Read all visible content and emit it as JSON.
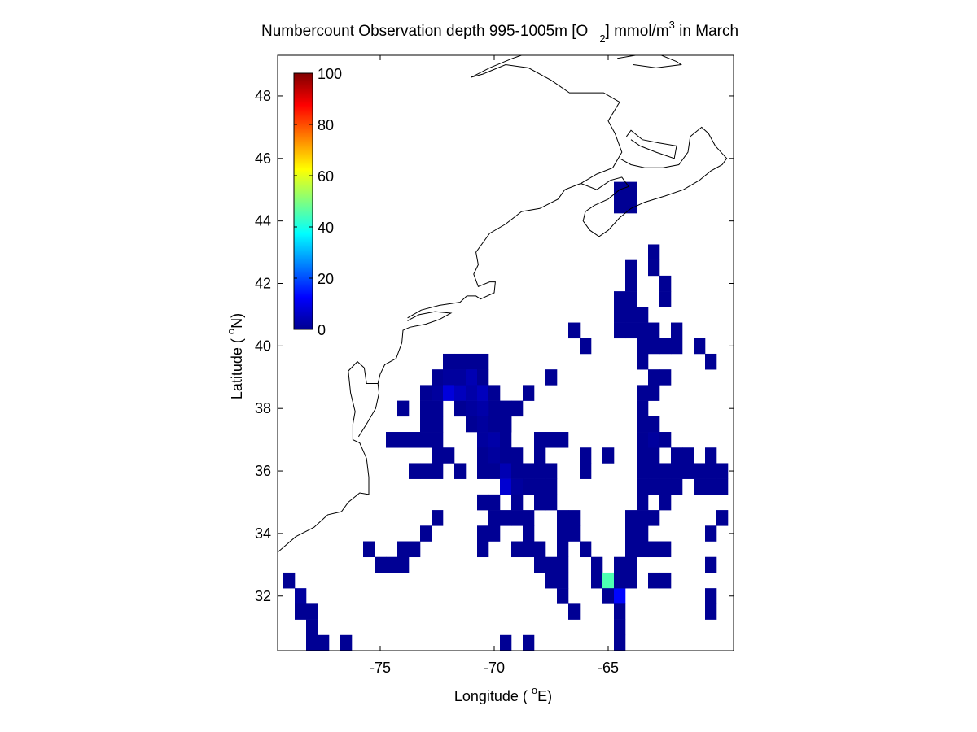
{
  "chart_data": {
    "type": "heatmap",
    "title": {
      "pre": "Numbercount Observation depth 995-1005m [O",
      "sub": "2",
      "mid": "] mmol/m",
      "sup": "3",
      "post": " in March"
    },
    "xlabel": {
      "pre": "Longitude ( ",
      "sup": "o",
      "post": "E)"
    },
    "ylabel": {
      "pre": "Latitude ( ",
      "sup": "o",
      "post": "N)"
    },
    "xlim": [
      -79.5,
      -59.5
    ],
    "ylim": [
      30.25,
      49.3
    ],
    "xticks": [
      -75,
      -70,
      -65
    ],
    "xtick_labels": [
      "-75",
      "-70",
      "-65"
    ],
    "yticks": [
      32,
      34,
      36,
      38,
      40,
      42,
      44,
      46,
      48
    ],
    "ytick_labels": [
      "32",
      "34",
      "36",
      "38",
      "40",
      "42",
      "44",
      "46",
      "48"
    ],
    "grid_resolution_deg": 0.5,
    "colorbar": {
      "min": 0,
      "max": 100,
      "colormap": "jet",
      "ticks": [
        0,
        20,
        40,
        60,
        80,
        100
      ],
      "tick_labels": [
        "0",
        "20",
        "40",
        "60",
        "80",
        "100"
      ]
    },
    "cells": [
      [
        -79,
        32.5,
        2
      ],
      [
        -78.5,
        32,
        3
      ],
      [
        -78.5,
        31.5,
        2
      ],
      [
        -78,
        31.5,
        2
      ],
      [
        -78,
        31,
        2
      ],
      [
        -78,
        30.5,
        2
      ],
      [
        -77.5,
        30.5,
        2
      ],
      [
        -76.5,
        30.5,
        2
      ],
      [
        -75.5,
        33.5,
        2
      ],
      [
        -75,
        33,
        2
      ],
      [
        -74.5,
        33,
        2
      ],
      [
        -74,
        33,
        2
      ],
      [
        -74,
        33.5,
        2
      ],
      [
        -73.5,
        33.5,
        2
      ],
      [
        -73,
        34,
        2
      ],
      [
        -72.5,
        34.5,
        2
      ],
      [
        -73.5,
        36,
        2
      ],
      [
        -73,
        36,
        2
      ],
      [
        -72.5,
        36,
        2
      ],
      [
        -74.5,
        37,
        2
      ],
      [
        -74,
        37,
        2
      ],
      [
        -73.5,
        37,
        2
      ],
      [
        -74,
        38,
        2
      ],
      [
        -73,
        38.5,
        2
      ],
      [
        -72.5,
        38.5,
        3
      ],
      [
        -73,
        38,
        2
      ],
      [
        -72.5,
        38,
        2
      ],
      [
        -72.5,
        37.5,
        2
      ],
      [
        -73,
        37.5,
        2
      ],
      [
        -73,
        37,
        2
      ],
      [
        -72.5,
        37,
        2
      ],
      [
        -72.5,
        36.5,
        2
      ],
      [
        -72.5,
        39,
        2
      ],
      [
        -72,
        39,
        3
      ],
      [
        -72,
        38.5,
        9
      ],
      [
        -71.5,
        38.5,
        6
      ],
      [
        -72,
        39.5,
        2
      ],
      [
        -71.5,
        39.5,
        2
      ],
      [
        -71,
        39.5,
        2
      ],
      [
        -70.5,
        39.5,
        2
      ],
      [
        -71.5,
        39,
        3
      ],
      [
        -71,
        39,
        5
      ],
      [
        -70.5,
        39,
        2
      ],
      [
        -71,
        38.5,
        4
      ],
      [
        -70.5,
        38.5,
        6
      ],
      [
        -70,
        38.5,
        2
      ],
      [
        -70,
        38,
        2
      ],
      [
        -71.5,
        38,
        2
      ],
      [
        -71,
        38,
        3
      ],
      [
        -70.5,
        38,
        4
      ],
      [
        -71,
        37.5,
        2
      ],
      [
        -70.5,
        37.5,
        3
      ],
      [
        -72,
        36.5,
        2
      ],
      [
        -71.5,
        36,
        2
      ],
      [
        -70.5,
        37,
        3
      ],
      [
        -70,
        37,
        4
      ],
      [
        -70,
        37.5,
        2
      ],
      [
        -69.5,
        37.5,
        2
      ],
      [
        -69.5,
        37,
        2
      ],
      [
        -70.5,
        36.5,
        2
      ],
      [
        -70,
        36.5,
        3
      ],
      [
        -69.5,
        36.5,
        2
      ],
      [
        -70.5,
        36,
        2
      ],
      [
        -70,
        36,
        2
      ],
      [
        -69.5,
        36,
        5
      ],
      [
        -69,
        36,
        2
      ],
      [
        -69.5,
        35.5,
        8
      ],
      [
        -69,
        35.5,
        3
      ],
      [
        -68.5,
        35.5,
        2
      ],
      [
        -68,
        35.5,
        2
      ],
      [
        -67.5,
        35.5,
        2
      ],
      [
        -70.5,
        35,
        2
      ],
      [
        -70,
        35,
        2
      ],
      [
        -69,
        35,
        2
      ],
      [
        -68,
        35,
        2
      ],
      [
        -67.5,
        35,
        2
      ],
      [
        -69.5,
        34.5,
        2
      ],
      [
        -69,
        34.5,
        2
      ],
      [
        -68.5,
        34.5,
        2
      ],
      [
        -70,
        34.5,
        2
      ],
      [
        -68.5,
        36,
        2
      ],
      [
        -68,
        36,
        2
      ],
      [
        -67.5,
        36,
        2
      ],
      [
        -69,
        36.5,
        2
      ],
      [
        -68,
        36.5,
        2
      ],
      [
        -67.5,
        37,
        2
      ],
      [
        -67,
        37,
        2
      ],
      [
        -68,
        37,
        2
      ],
      [
        -69.5,
        38,
        2
      ],
      [
        -69,
        38,
        2
      ],
      [
        -69.5,
        37.5,
        2
      ],
      [
        -68.5,
        38.5,
        2
      ],
      [
        -67.5,
        39,
        2
      ],
      [
        -70.5,
        34,
        2
      ],
      [
        -70.5,
        33.5,
        2
      ],
      [
        -70,
        34,
        2
      ],
      [
        -68.5,
        34,
        2
      ],
      [
        -68,
        33.5,
        2
      ],
      [
        -67,
        34.5,
        2
      ],
      [
        -66.5,
        34.5,
        2
      ],
      [
        -67,
        34,
        2
      ],
      [
        -66.5,
        34,
        2
      ],
      [
        -69,
        33.5,
        2
      ],
      [
        -68.5,
        33.5,
        2
      ],
      [
        -68,
        33,
        2
      ],
      [
        -67,
        33.5,
        2
      ],
      [
        -67.5,
        33,
        2
      ],
      [
        -67,
        33,
        2
      ],
      [
        -67.5,
        32.5,
        2
      ],
      [
        -67,
        32.5,
        2
      ],
      [
        -67,
        32,
        2
      ],
      [
        -66.5,
        31.5,
        2
      ],
      [
        -66,
        33.5,
        2
      ],
      [
        -65.5,
        33,
        2
      ],
      [
        -65.5,
        32.5,
        2
      ],
      [
        -65,
        32.5,
        45
      ],
      [
        -65,
        32,
        2
      ],
      [
        -64.5,
        32,
        13
      ],
      [
        -64.5,
        32.5,
        2
      ],
      [
        -64,
        32.5,
        2
      ],
      [
        -64.5,
        33,
        2
      ],
      [
        -64,
        33,
        2
      ],
      [
        -64.5,
        31.5,
        2
      ],
      [
        -64.5,
        31,
        2
      ],
      [
        -64.5,
        30.5,
        2
      ],
      [
        -64,
        33.5,
        2
      ],
      [
        -63.5,
        33.5,
        2
      ],
      [
        -64,
        34,
        2
      ],
      [
        -63.5,
        34,
        2
      ],
      [
        -63,
        33.5,
        2
      ],
      [
        -63,
        32.5,
        2
      ],
      [
        -62.5,
        32.5,
        2
      ],
      [
        -64,
        34.5,
        2
      ],
      [
        -63.5,
        34.5,
        2
      ],
      [
        -63.5,
        35,
        2
      ],
      [
        -63,
        35.5,
        2
      ],
      [
        -63.5,
        35.5,
        2
      ],
      [
        -63.5,
        36,
        2
      ],
      [
        -63,
        36,
        2
      ],
      [
        -62.5,
        36,
        2
      ],
      [
        -62,
        36,
        2
      ],
      [
        -61.5,
        36,
        2
      ],
      [
        -61,
        36,
        2
      ],
      [
        -60.5,
        36,
        2
      ],
      [
        -60,
        36,
        2
      ],
      [
        -62.5,
        35.5,
        2
      ],
      [
        -62,
        35.5,
        2
      ],
      [
        -61,
        35.5,
        2
      ],
      [
        -60.5,
        35.5,
        2
      ],
      [
        -60,
        35.5,
        2
      ],
      [
        -62,
        36.5,
        2
      ],
      [
        -61.5,
        36.5,
        2
      ],
      [
        -60.5,
        36.5,
        2
      ],
      [
        -62.5,
        35,
        2
      ],
      [
        -63,
        34.5,
        2
      ],
      [
        -60,
        34.5,
        2
      ],
      [
        -60.5,
        34,
        2
      ],
      [
        -62.5,
        33.5,
        2
      ],
      [
        -60.5,
        33,
        2
      ],
      [
        -60.5,
        32,
        2
      ],
      [
        -63.5,
        36.5,
        2
      ],
      [
        -63,
        36.5,
        2
      ],
      [
        -63.5,
        37,
        2
      ],
      [
        -63,
        37,
        3
      ],
      [
        -63.5,
        37.5,
        2
      ],
      [
        -63,
        37.5,
        2
      ],
      [
        -62.5,
        37,
        2
      ],
      [
        -63.5,
        38,
        2
      ],
      [
        -63.5,
        38.5,
        2
      ],
      [
        -63,
        38.5,
        2
      ],
      [
        -63,
        39,
        2
      ],
      [
        -62.5,
        39,
        2
      ],
      [
        -63.5,
        39.5,
        2
      ],
      [
        -63.5,
        40,
        2
      ],
      [
        -63,
        40,
        2
      ],
      [
        -62.5,
        40,
        2
      ],
      [
        -62,
        40,
        2
      ],
      [
        -63.5,
        40.5,
        2
      ],
      [
        -63,
        40.5,
        2
      ],
      [
        -64,
        40.5,
        2
      ],
      [
        -64.5,
        40.5,
        2
      ],
      [
        -64.5,
        41,
        2
      ],
      [
        -64,
        41,
        2
      ],
      [
        -64,
        41.5,
        2
      ],
      [
        -64.5,
        41.5,
        2
      ],
      [
        -63.5,
        41,
        2
      ],
      [
        -64,
        42,
        2
      ],
      [
        -64,
        42.5,
        2
      ],
      [
        -63,
        42.5,
        2
      ],
      [
        -63,
        43,
        2
      ],
      [
        -62.5,
        41.5,
        2
      ],
      [
        -62.5,
        42,
        2
      ],
      [
        -62,
        40.5,
        2
      ],
      [
        -61,
        40,
        2
      ],
      [
        -60.5,
        39.5,
        2
      ],
      [
        -66.5,
        40.5,
        2
      ],
      [
        -66,
        40,
        2
      ],
      [
        -66,
        36.5,
        2
      ],
      [
        -65,
        36.5,
        2
      ],
      [
        -66,
        36,
        2
      ],
      [
        -64.5,
        45,
        2
      ],
      [
        -64,
        45,
        2
      ],
      [
        -64.5,
        44.5,
        2
      ],
      [
        -64,
        44.5,
        2
      ],
      [
        -60.5,
        31.5,
        2
      ],
      [
        -69.5,
        30.5,
        2
      ],
      [
        -68.5,
        30.5,
        2
      ]
    ]
  },
  "coast_paths": [
    [
      [
        -80,
        32.8
      ],
      [
        -79.5,
        33.4
      ],
      [
        -78.7,
        33.9
      ],
      [
        -77.9,
        34.2
      ],
      [
        -77.3,
        34.6
      ],
      [
        -76.7,
        34.7
      ],
      [
        -76.4,
        35.0
      ],
      [
        -75.9,
        35.3
      ],
      [
        -75.5,
        35.25
      ],
      [
        -75.5,
        35.8
      ],
      [
        -75.6,
        36.4
      ],
      [
        -75.9,
        36.9
      ],
      [
        -76.2,
        37.0
      ],
      [
        -76.2,
        37.5
      ],
      [
        -76.1,
        37.9
      ],
      [
        -76.3,
        38.5
      ],
      [
        -76.4,
        39.2
      ],
      [
        -76.0,
        39.5
      ],
      [
        -75.7,
        39.3
      ],
      [
        -75.6,
        38.8
      ],
      [
        -75.1,
        38.8
      ],
      [
        -75.05,
        38.5
      ],
      [
        -75.2,
        38.0
      ],
      [
        -75.6,
        37.5
      ],
      [
        -75.95,
        37.1
      ]
    ],
    [
      [
        -75.1,
        38.8
      ],
      [
        -75.0,
        39.1
      ],
      [
        -74.8,
        39.4
      ],
      [
        -74.3,
        39.6
      ],
      [
        -74.05,
        40.1
      ],
      [
        -74.0,
        40.5
      ],
      [
        -73.7,
        40.6
      ],
      [
        -73.0,
        40.7
      ],
      [
        -72.4,
        40.85
      ],
      [
        -71.9,
        41.05
      ],
      [
        -72.6,
        41.1
      ],
      [
        -73.3,
        41.0
      ],
      [
        -73.7,
        40.85
      ],
      [
        -73.8,
        40.8
      ]
    ],
    [
      [
        -73.8,
        40.9
      ],
      [
        -73.2,
        41.15
      ],
      [
        -72.4,
        41.3
      ],
      [
        -71.5,
        41.4
      ],
      [
        -71.2,
        41.6
      ],
      [
        -70.8,
        41.6
      ],
      [
        -70.6,
        41.5
      ],
      [
        -70.0,
        41.7
      ],
      [
        -69.95,
        42.05
      ],
      [
        -70.2,
        42.05
      ],
      [
        -70.7,
        41.9
      ],
      [
        -70.9,
        42.3
      ],
      [
        -70.7,
        42.6
      ],
      [
        -70.8,
        43.0
      ],
      [
        -70.2,
        43.6
      ],
      [
        -69.5,
        43.9
      ],
      [
        -68.8,
        44.3
      ],
      [
        -68.0,
        44.4
      ],
      [
        -67.2,
        44.7
      ],
      [
        -66.9,
        45.0
      ],
      [
        -66.2,
        45.2
      ],
      [
        -65.5,
        45.5
      ],
      [
        -64.8,
        45.7
      ],
      [
        -64.4,
        46.2
      ],
      [
        -64.7,
        46.8
      ],
      [
        -65.0,
        47.2
      ],
      [
        -64.5,
        47.8
      ],
      [
        -65.2,
        48.1
      ],
      [
        -66.0,
        48.1
      ],
      [
        -66.7,
        48.1
      ],
      [
        -67.5,
        48.5
      ],
      [
        -68.5,
        48.9
      ],
      [
        -69.5,
        49.0
      ],
      [
        -70.5,
        48.7
      ],
      [
        -71.0,
        48.6
      ]
    ],
    [
      [
        -66.2,
        45.2
      ],
      [
        -65.5,
        45.0
      ],
      [
        -64.9,
        45.3
      ],
      [
        -64.4,
        45.4
      ],
      [
        -64.1,
        45.1
      ],
      [
        -64.5,
        45.0
      ],
      [
        -65.0,
        44.7
      ],
      [
        -65.6,
        44.5
      ],
      [
        -66.0,
        44.3
      ],
      [
        -66.1,
        44.0
      ],
      [
        -65.8,
        43.7
      ],
      [
        -65.4,
        43.5
      ],
      [
        -65.0,
        43.7
      ],
      [
        -64.5,
        44.1
      ],
      [
        -64.0,
        44.4
      ],
      [
        -63.4,
        44.6
      ],
      [
        -62.5,
        44.8
      ],
      [
        -61.7,
        45.0
      ],
      [
        -61.0,
        45.3
      ],
      [
        -60.5,
        45.6
      ],
      [
        -60.0,
        45.8
      ],
      [
        -59.8,
        46.0
      ],
      [
        -60.3,
        46.4
      ],
      [
        -60.6,
        46.8
      ],
      [
        -60.9,
        47.0
      ],
      [
        -61.4,
        46.7
      ],
      [
        -61.5,
        46.2
      ],
      [
        -61.9,
        45.8
      ],
      [
        -62.6,
        45.7
      ],
      [
        -63.4,
        45.7
      ],
      [
        -64.0,
        45.8
      ],
      [
        -64.5,
        46.0
      ]
    ],
    [
      [
        -64.0,
        46.6
      ],
      [
        -63.6,
        46.4
      ],
      [
        -62.9,
        46.2
      ],
      [
        -62.1,
        46.0
      ],
      [
        -62.0,
        46.4
      ],
      [
        -62.8,
        46.5
      ],
      [
        -63.5,
        46.6
      ],
      [
        -64.0,
        46.9
      ],
      [
        -64.2,
        46.7
      ]
    ],
    [
      [
        -64.6,
        49.2
      ],
      [
        -63.0,
        49.4
      ],
      [
        -62.0,
        49.1
      ],
      [
        -61.8,
        49.0
      ],
      [
        -62.9,
        48.9
      ],
      [
        -63.9,
        49.0
      ]
    ],
    [
      [
        -71.0,
        48.6
      ],
      [
        -70.2,
        48.9
      ],
      [
        -69.2,
        49.2
      ],
      [
        -68.4,
        49.4
      ]
    ]
  ]
}
